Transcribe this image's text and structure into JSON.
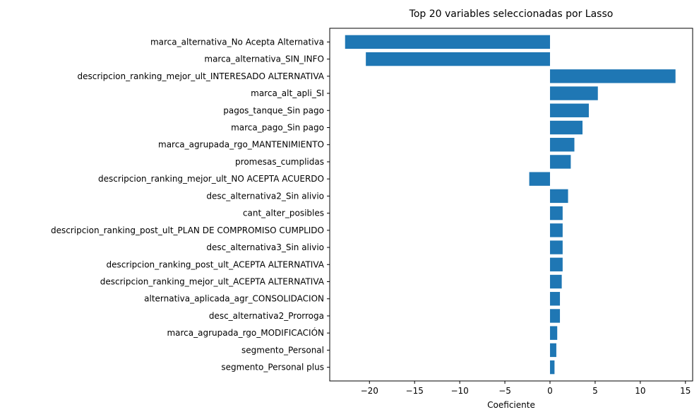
{
  "chart_data": {
    "type": "bar",
    "orientation": "horizontal",
    "title": "Top 20 variables seleccionadas por Lasso",
    "xlabel": "Coeficiente",
    "ylabel": "",
    "xlim": [
      -24.4,
      15.8
    ],
    "xticks": [
      -20,
      -15,
      -10,
      -5,
      0,
      5,
      10,
      15
    ],
    "xtick_labels": [
      "−20",
      "−15",
      "−10",
      "−5",
      "0",
      "5",
      "10",
      "15"
    ],
    "grid": false,
    "bar_color": "#1f77b4",
    "categories": [
      "marca_alternativa_No Acepta Alternativa",
      "marca_alternativa_SIN_INFO",
      "descripcion_ranking_mejor_ult_INTERESADO ALTERNATIVA",
      "marca_alt_apli_SI",
      "pagos_tanque_Sin pago",
      "marca_pago_Sin pago",
      "marca_agrupada_rgo_MANTENIMIENTO",
      "promesas_cumplidas",
      "descripcion_ranking_mejor_ult_NO ACEPTA ACUERDO",
      "desc_alternativa2_Sin alivio",
      "cant_alter_posibles",
      "descripcion_ranking_post_ult_PLAN DE COMPROMISO CUMPLIDO",
      "desc_alternativa3_Sin alivio",
      "descripcion_ranking_post_ult_ACEPTA ALTERNATIVA",
      "descripcion_ranking_mejor_ult_ACEPTA ALTERNATIVA",
      "alternativa_aplicada_agr_CONSOLIDACION",
      "desc_alternativa2_Prorroga",
      "marca_agrupada_rgo_MODIFICACIÓN",
      "segmento_Personal",
      "segmento_Personal plus"
    ],
    "values": [
      -22.7,
      -20.4,
      13.9,
      5.3,
      4.3,
      3.6,
      2.7,
      2.3,
      -2.3,
      2.0,
      1.4,
      1.4,
      1.4,
      1.4,
      1.3,
      1.1,
      1.1,
      0.8,
      0.7,
      0.5
    ]
  }
}
